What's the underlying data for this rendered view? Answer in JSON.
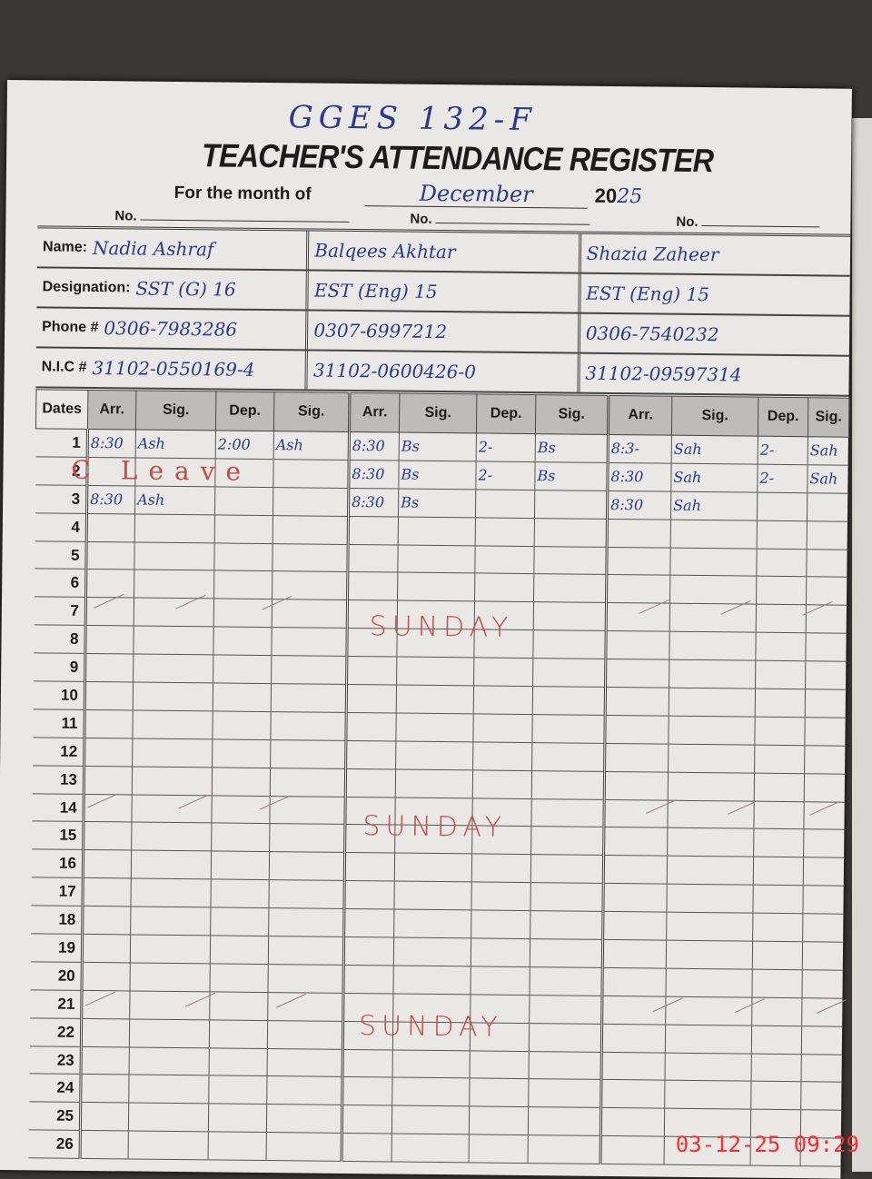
{
  "header": {
    "school": "GGES 132-F",
    "title": "TEACHER'S ATTENDANCE REGISTER",
    "month_label": "For the month of",
    "month": "December",
    "year_printed": "20",
    "year_hand": "25",
    "no_label": "No."
  },
  "labels": {
    "name": "Name:",
    "designation": "Designation:",
    "phone": "Phone #",
    "nic": "N.I.C #"
  },
  "teachers": [
    {
      "name": "Nadia Ashraf",
      "designation": "SST (G)  16",
      "phone": "0306-7983286",
      "nic": "31102-0550169-4"
    },
    {
      "name": "Balqees Akhtar",
      "designation": "EST (Eng)  15",
      "phone": "0307-6997212",
      "nic": "31102-0600426-0"
    },
    {
      "name": "Shazia Zaheer",
      "designation": "EST (Eng)  15",
      "phone": "0306-7540232",
      "nic": "31102-09597314"
    }
  ],
  "columns": {
    "dates": "Dates",
    "group": [
      "Arr.",
      "Sig.",
      "Dep.",
      "Sig."
    ]
  },
  "rows": [
    {
      "date": "1",
      "cells": [
        "8:30",
        "Ash",
        "2:00",
        "Ash",
        "8:30",
        "Bs",
        "2-",
        "Bs",
        "8:3-",
        "Sah",
        "2-",
        "Sah"
      ]
    },
    {
      "date": "2",
      "cells": [
        "",
        "",
        "",
        "",
        "8:30",
        "Bs",
        "2-",
        "Bs",
        "8:30",
        "Sah",
        "2-",
        "Sah"
      ]
    },
    {
      "date": "3",
      "cells": [
        "8:30",
        "Ash",
        "",
        "",
        "8:30",
        "Bs",
        "",
        "",
        "8:30",
        "Sah",
        "",
        ""
      ]
    },
    {
      "date": "4"
    },
    {
      "date": "5"
    },
    {
      "date": "6"
    },
    {
      "date": "7"
    },
    {
      "date": "8"
    },
    {
      "date": "9"
    },
    {
      "date": "10"
    },
    {
      "date": "11"
    },
    {
      "date": "12"
    },
    {
      "date": "13"
    },
    {
      "date": "14"
    },
    {
      "date": "15"
    },
    {
      "date": "16"
    },
    {
      "date": "17"
    },
    {
      "date": "18"
    },
    {
      "date": "19"
    },
    {
      "date": "20"
    },
    {
      "date": "21"
    },
    {
      "date": "22"
    },
    {
      "date": "23"
    },
    {
      "date": "24"
    },
    {
      "date": "25"
    },
    {
      "date": "26"
    }
  ],
  "annotations": {
    "leave": "C Leave",
    "sunday": "SUNDAY"
  },
  "timestamp": "03-12-25  09:29"
}
